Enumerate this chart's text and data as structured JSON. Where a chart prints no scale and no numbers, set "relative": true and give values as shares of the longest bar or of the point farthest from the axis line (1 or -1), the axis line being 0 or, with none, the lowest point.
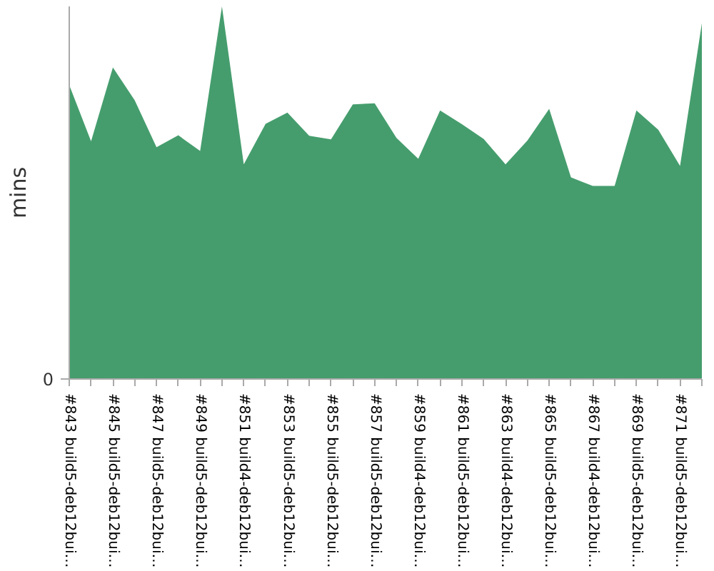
{
  "chart_data": {
    "type": "area",
    "ylabel": "mins",
    "relative": true,
    "annotations": [
      "0"
    ],
    "grid": false,
    "color": "#459d6d",
    "categories": [
      "#843 build5-deb12bui…",
      null,
      "#845 build5-deb12bui…",
      null,
      "#847 build5-deb12bui…",
      null,
      "#849 build5-deb12bui…",
      null,
      "#851 build4-deb12bui…",
      null,
      "#853 build5-deb12bui…",
      null,
      "#855 build5-deb12bui…",
      null,
      "#857 build5-deb12bui…",
      null,
      "#859 build4-deb12bui…",
      null,
      "#861 build5-deb12bui…",
      null,
      "#863 build4-deb12bui…",
      null,
      "#865 build5-deb12bui…",
      null,
      "#867 build4-deb12bui…",
      null,
      "#869 build5-deb12bui…",
      null,
      "#871 build5-deb12bui…",
      null
    ],
    "values": [
      0.789,
      0.638,
      0.836,
      0.748,
      0.622,
      0.654,
      0.612,
      1.0,
      0.576,
      0.685,
      0.715,
      0.653,
      0.643,
      0.737,
      0.74,
      0.647,
      0.591,
      0.721,
      0.684,
      0.644,
      0.576,
      0.64,
      0.725,
      0.541,
      0.518,
      0.518,
      0.721,
      0.669,
      0.572,
      0.955
    ]
  }
}
